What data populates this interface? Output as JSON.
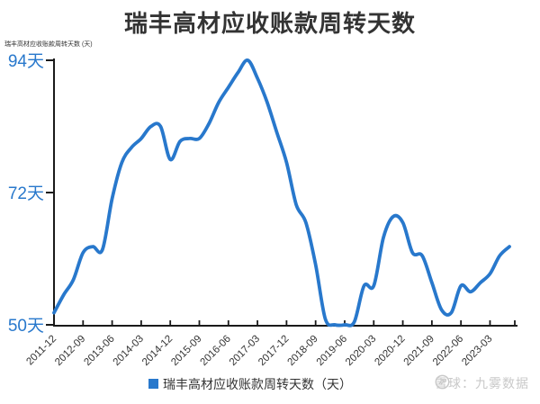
{
  "chart_data": {
    "type": "line",
    "title": "瑞丰高材应收账款周转天数",
    "ylabel": "瑞丰高材应收账款周转天数 (天)",
    "legend": "瑞丰高材应收账款周转天数（天）",
    "watermark": "雪球：九雾数据",
    "x": [
      "2011-12",
      "2012-03",
      "2012-06",
      "2012-09",
      "2012-12",
      "2013-03",
      "2013-06",
      "2013-09",
      "2013-12",
      "2014-03",
      "2014-06",
      "2014-09",
      "2014-12",
      "2015-03",
      "2015-06",
      "2015-09",
      "2015-12",
      "2016-03",
      "2016-06",
      "2016-09",
      "2016-12",
      "2017-03",
      "2017-06",
      "2017-09",
      "2017-12",
      "2018-03",
      "2018-06",
      "2018-09",
      "2018-12",
      "2019-03",
      "2019-06",
      "2019-09",
      "2019-12",
      "2020-03",
      "2020-06",
      "2020-09",
      "2020-12",
      "2021-03",
      "2021-06",
      "2021-09",
      "2021-12",
      "2022-03",
      "2022-06",
      "2022-09",
      "2022-12",
      "2023-03",
      "2023-06",
      "2023-09"
    ],
    "values": [
      52,
      55,
      57.5,
      62,
      63,
      62.5,
      71,
      77,
      79.5,
      81,
      83,
      83,
      77.5,
      80.5,
      81,
      81,
      83.5,
      87,
      89.5,
      92,
      94,
      91,
      87,
      82,
      77,
      70,
      67,
      60,
      51,
      50,
      50,
      50.5,
      56.5,
      56.5,
      64.5,
      68,
      67,
      62,
      61.5,
      57,
      52.5,
      52,
      56.5,
      55.5,
      57,
      58.5,
      61.5,
      63
    ],
    "x_tick_labels": [
      "2011-12",
      "2012-09",
      "2013-06",
      "2014-03",
      "2014-12",
      "2015-09",
      "2016-06",
      "2017-03",
      "2017-12",
      "2018-09",
      "2019-06",
      "2020-03",
      "2020-12",
      "2021-09",
      "2022-06",
      "2023-03"
    ],
    "yticks": [
      94,
      72,
      50
    ],
    "ytick_suffix": "天",
    "ylim": [
      50,
      94
    ],
    "grid": false,
    "legend_position": "bottom-center",
    "line_color": "#2878cc",
    "axis_color": "#1a1a1a",
    "y_tick_label_color": "#2878cc",
    "x_tick_label_color": "#333333",
    "watermark_color": "#c9c9c9"
  }
}
